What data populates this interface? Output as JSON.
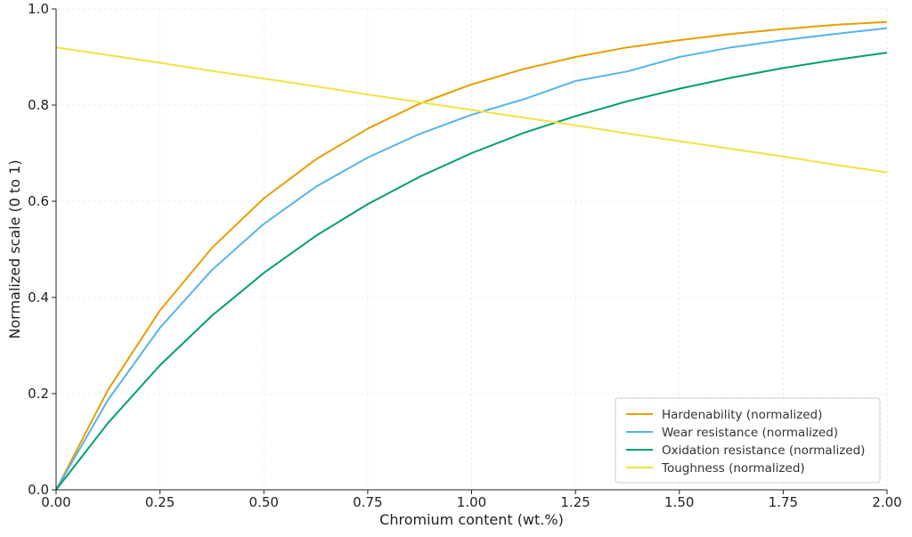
{
  "chart_data": {
    "type": "line",
    "xlabel": "Chromium content (wt.%)",
    "ylabel": "Normalized scale (0 to 1)",
    "xlim": [
      0,
      2.0
    ],
    "ylim": [
      0,
      1.0
    ],
    "grid": true,
    "legend_position": "bottom-right",
    "x_ticks": [
      0,
      0.25,
      0.5,
      0.75,
      1.0,
      1.25,
      1.5,
      1.75,
      2.0
    ],
    "x_tick_labels": [
      "0.00",
      "0.25",
      "0.50",
      "0.75",
      "1.00",
      "1.25",
      "1.50",
      "1.75",
      "2.00"
    ],
    "y_ticks": [
      0,
      0.2,
      0.4,
      0.6,
      0.8,
      1.0
    ],
    "y_tick_labels": [
      "0.0",
      "0.2",
      "0.4",
      "0.6",
      "0.8",
      "1.0"
    ],
    "x": [
      0,
      0.125,
      0.25,
      0.375,
      0.5,
      0.625,
      0.75,
      0.875,
      1.0,
      1.125,
      1.25,
      1.375,
      1.5,
      1.625,
      1.75,
      1.875,
      2.0
    ],
    "series": [
      {
        "name": "Hardenability (normalized)",
        "color": "#E69F00",
        "values": [
          0,
          0.208,
          0.373,
          0.503,
          0.606,
          0.687,
          0.751,
          0.803,
          0.843,
          0.875,
          0.9,
          0.92,
          0.935,
          0.948,
          0.958,
          0.967,
          0.973
        ]
      },
      {
        "name": "Wear resistance (normalized)",
        "color": "#56B4E9",
        "values": [
          0,
          0.187,
          0.337,
          0.457,
          0.553,
          0.63,
          0.691,
          0.74,
          0.78,
          0.812,
          0.85,
          0.87,
          0.9,
          0.92,
          0.935,
          0.948,
          0.96
        ]
      },
      {
        "name": "Oxidation resistance (normalized)",
        "color": "#009E73",
        "values": [
          0,
          0.139,
          0.259,
          0.362,
          0.451,
          0.528,
          0.594,
          0.651,
          0.7,
          0.742,
          0.777,
          0.808,
          0.834,
          0.857,
          0.877,
          0.894,
          0.909
        ]
      },
      {
        "name": "Toughness (normalized)",
        "color": "#F0E442",
        "values": [
          0.92,
          0.904,
          0.888,
          0.871,
          0.855,
          0.839,
          0.822,
          0.806,
          0.79,
          0.774,
          0.758,
          0.741,
          0.725,
          0.709,
          0.693,
          0.676,
          0.66
        ]
      }
    ]
  }
}
